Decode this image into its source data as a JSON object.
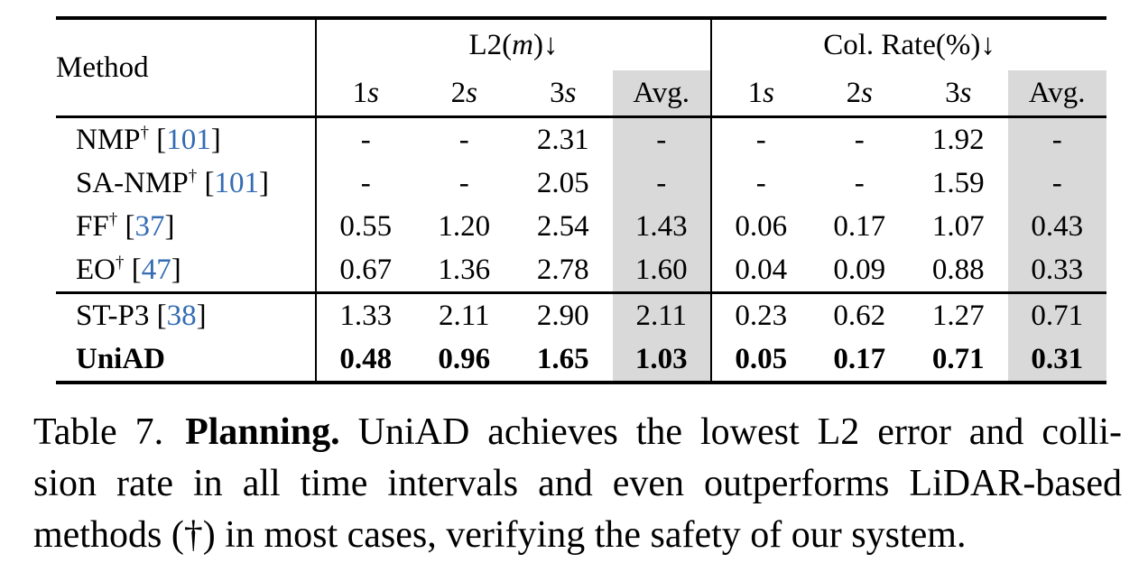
{
  "colors": {
    "citation_blue": "#346cb4",
    "avg_highlight": "#d9d9d9"
  },
  "table": {
    "method_header": "Method",
    "dagger_symbol": "†",
    "group1": {
      "pre": "L2(",
      "var": "m",
      "post": ")",
      "arrow": "↓"
    },
    "group2": {
      "pre": "Col. Rate(%)",
      "arrow": "↓"
    },
    "subheaders": [
      {
        "num": "1",
        "var": "s",
        "avg": false
      },
      {
        "num": "2",
        "var": "s",
        "avg": false
      },
      {
        "num": "3",
        "var": "s",
        "avg": false
      },
      {
        "num": "Avg.",
        "var": "",
        "avg": true
      },
      {
        "num": "1",
        "var": "s",
        "avg": false
      },
      {
        "num": "2",
        "var": "s",
        "avg": false
      },
      {
        "num": "3",
        "var": "s",
        "avg": false
      },
      {
        "num": "Avg.",
        "var": "",
        "avg": true
      }
    ],
    "rows": [
      {
        "method": "NMP",
        "dagger": true,
        "cite": "101",
        "bold": false,
        "section": 1,
        "values": [
          "-",
          "-",
          "2.31",
          "-",
          "-",
          "-",
          "1.92",
          "-"
        ]
      },
      {
        "method": "SA-NMP",
        "dagger": true,
        "cite": "101",
        "bold": false,
        "section": 1,
        "values": [
          "-",
          "-",
          "2.05",
          "-",
          "-",
          "-",
          "1.59",
          "-"
        ]
      },
      {
        "method": "FF",
        "dagger": true,
        "cite": "37",
        "bold": false,
        "section": 1,
        "values": [
          "0.55",
          "1.20",
          "2.54",
          "1.43",
          "0.06",
          "0.17",
          "1.07",
          "0.43"
        ]
      },
      {
        "method": "EO",
        "dagger": true,
        "cite": "47",
        "bold": false,
        "section": 1,
        "values": [
          "0.67",
          "1.36",
          "2.78",
          "1.60",
          "0.04",
          "0.09",
          "0.88",
          "0.33"
        ]
      },
      {
        "method": "ST-P3",
        "dagger": false,
        "cite": "38",
        "bold": false,
        "section": 2,
        "values": [
          "1.33",
          "2.11",
          "2.90",
          "2.11",
          "0.23",
          "0.62",
          "1.27",
          "0.71"
        ]
      },
      {
        "method": "UniAD",
        "dagger": false,
        "cite": "",
        "bold": true,
        "section": 2,
        "values": [
          "0.48",
          "0.96",
          "1.65",
          "1.03",
          "0.05",
          "0.17",
          "0.71",
          "0.31"
        ]
      }
    ]
  },
  "caption": {
    "tag": "Table 7.",
    "title": "Planning.",
    "line1_rest": "UniAD achieves the lowest L2 error and colli-",
    "line2": "sion rate in all time intervals and even outperforms LiDAR-based",
    "line3": "methods (†) in most cases, verifying the safety of our system."
  }
}
